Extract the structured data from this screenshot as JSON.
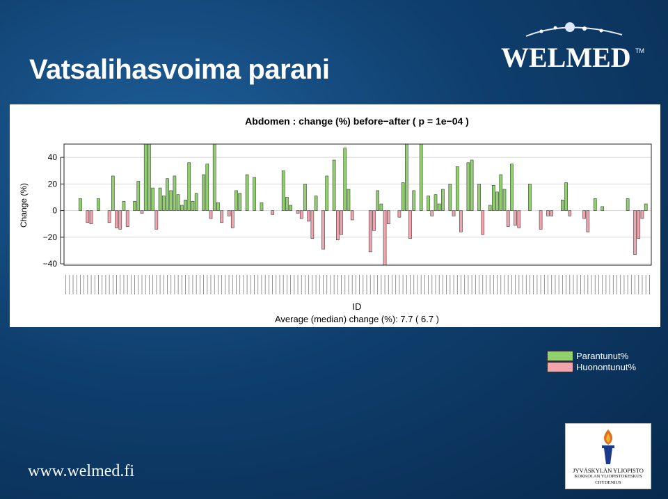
{
  "slide": {
    "title": "Vatsalihasvoima parani",
    "footer_url": "www.welmed.fi",
    "logo_text": "WELMED",
    "logo_tm": "TM",
    "university": {
      "line1": "JYVÄSKYLÄN YLIOPISTO",
      "line2": "KOKKOLAN YLIOPISTOKESKUS",
      "line3": "CHYDENIUS"
    },
    "background_color": "#0f3f6e"
  },
  "legend": {
    "items": [
      {
        "label": "Parantunut%",
        "color": "#8fd16a"
      },
      {
        "label": "Huonontunut%",
        "color": "#f4a3ad"
      }
    ]
  },
  "chart_data": {
    "type": "bar",
    "title": "Abdomen : change (%) before−after ( p =  1e−04 )",
    "xlabel": "ID",
    "ylabel": "Change (%)",
    "subtitle": "Average (median) change (%): 7.7 ( 6.7 )",
    "ylim": [
      -41,
      50
    ],
    "yticks": [
      -40,
      -20,
      0,
      20,
      40
    ],
    "ytick_labels": [
      "−40",
      "−20",
      "0",
      "20",
      "40"
    ],
    "grid": true,
    "positive_color": "#8fd16a",
    "negative_color": "#f4a3ad",
    "values": [
      0,
      0,
      0,
      0,
      9,
      0,
      -9,
      -10,
      0,
      9,
      0,
      0,
      -9,
      26,
      -13,
      -14,
      7,
      -12,
      0,
      7,
      22,
      -2,
      50,
      50,
      17,
      -14,
      17,
      11,
      24,
      15,
      26,
      12,
      4,
      8,
      36,
      7,
      13,
      0,
      27,
      35,
      -6,
      50,
      6,
      -9,
      0,
      -4,
      -13,
      15,
      13,
      0,
      27,
      0,
      25,
      0,
      6,
      0,
      0,
      -3,
      0,
      0,
      30,
      10,
      4,
      0,
      -2,
      -6,
      20,
      -8,
      -21,
      11,
      0,
      -29,
      26,
      0,
      38,
      -22,
      -18,
      47,
      16,
      -7,
      0,
      0,
      0,
      0,
      -31,
      -15,
      15,
      5,
      -41,
      -10,
      0,
      0,
      -5,
      21,
      50,
      -21,
      15,
      0,
      50,
      0,
      11,
      -4,
      12,
      5,
      16,
      0,
      20,
      -4,
      33,
      -16,
      0,
      36,
      38,
      0,
      20,
      -18,
      0,
      4,
      19,
      14,
      27,
      16,
      -12,
      35,
      -11,
      -13,
      0,
      0,
      20,
      0,
      0,
      -14,
      0,
      -4,
      -4,
      0,
      0,
      8,
      21,
      -4,
      0,
      0,
      0,
      -6,
      -16,
      0,
      9,
      0,
      3,
      0,
      0,
      0,
      0,
      0,
      0,
      9,
      0,
      -33,
      -21,
      -6,
      5,
      0
    ]
  }
}
